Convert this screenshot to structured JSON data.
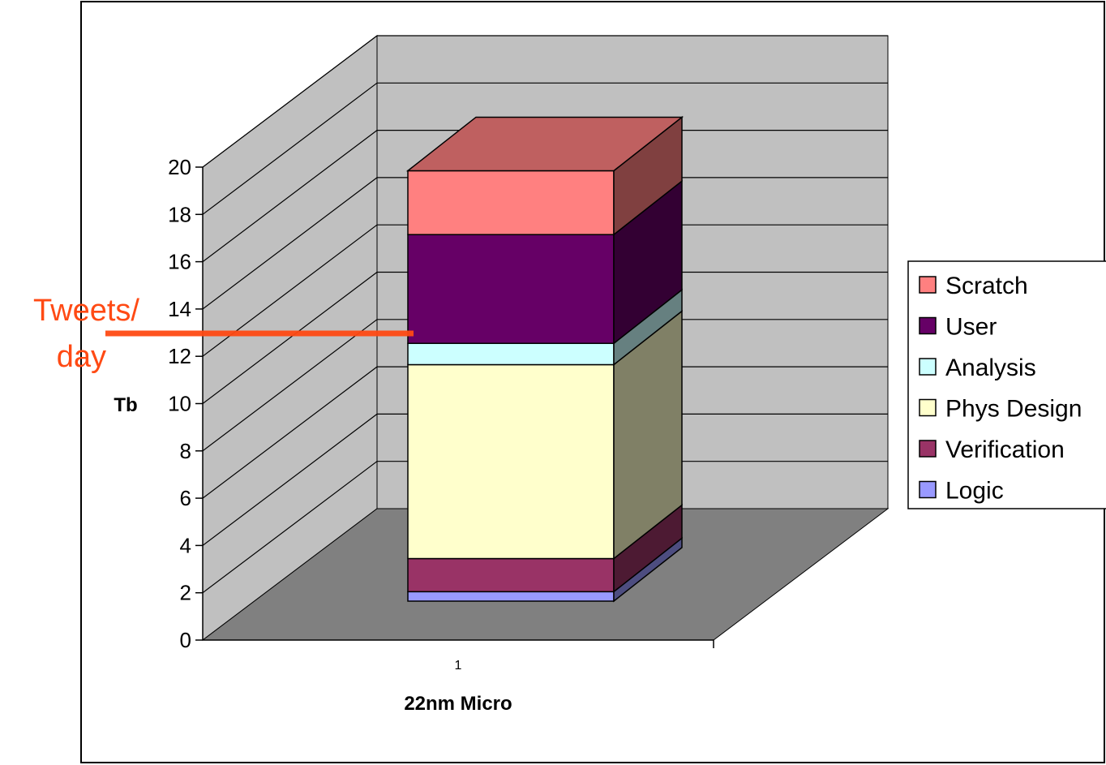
{
  "chart_data": {
    "type": "bar",
    "subtype": "stacked-3d-column",
    "categories": [
      "1"
    ],
    "series": [
      {
        "name": "Logic",
        "values": [
          0.4
        ],
        "color": "#9999ff"
      },
      {
        "name": "Verification",
        "values": [
          1.4
        ],
        "color": "#993366"
      },
      {
        "name": "Phys Design",
        "values": [
          8.2
        ],
        "color": "#ffffcc"
      },
      {
        "name": "Analysis",
        "values": [
          0.9
        ],
        "color": "#ccffff"
      },
      {
        "name": "User",
        "values": [
          4.6
        ],
        "color": "#660066"
      },
      {
        "name": "Scratch",
        "values": [
          2.7
        ],
        "color": "#ff8080"
      }
    ],
    "xlabel": "22nm Micro",
    "ylabel": "Tb",
    "ylim": [
      0,
      20
    ],
    "yticks": [
      "0",
      "2",
      "4",
      "6",
      "8",
      "10",
      "12",
      "14",
      "16",
      "18",
      "20"
    ],
    "grid": true,
    "legend_position": "right",
    "annotation": {
      "line1": "Tweets/",
      "line2": "day",
      "value": 12.9,
      "color": "#ff4a14"
    },
    "colors": {
      "back_wall": "#c0c0c0",
      "side_wall": "#c0c0c0",
      "floor": "#808080"
    }
  }
}
